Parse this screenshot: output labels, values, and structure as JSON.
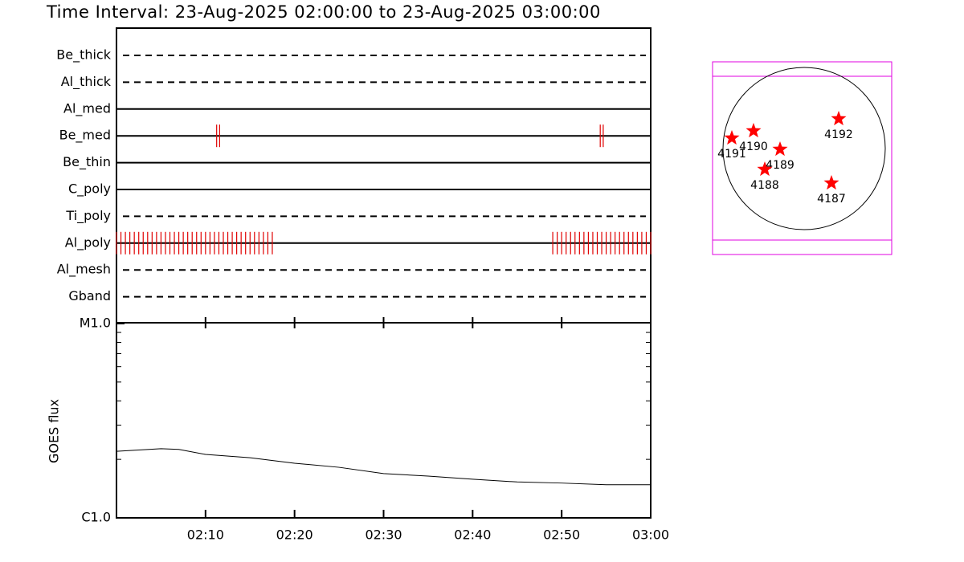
{
  "chart_data": [
    {
      "type": "timeline",
      "title": "Time Interval: 23-Aug-2025 02:00:00 to 23-Aug-2025 03:00:00",
      "categories": [
        "Be_thick",
        "Al_thick",
        "Al_med",
        "Be_med",
        "Be_thin",
        "C_poly",
        "Ti_poly",
        "Al_poly",
        "Al_mesh",
        "Gband"
      ],
      "styles": [
        "dashed",
        "dashed",
        "solid",
        "solid",
        "solid",
        "solid",
        "dashed",
        "solid",
        "dashed",
        "dashed"
      ],
      "event_color": "#e00000",
      "series": [
        {
          "name": "Be_med",
          "x": [
            "02:11:15",
            "02:11:35",
            "02:54:20",
            "02:54:40"
          ]
        },
        {
          "name": "Al_poly",
          "x": [
            "02:00:00",
            "02:00:30",
            "02:01:00",
            "02:01:30",
            "02:02:00",
            "02:02:30",
            "02:03:00",
            "02:03:30",
            "02:04:00",
            "02:04:30",
            "02:05:00",
            "02:05:30",
            "02:06:00",
            "02:06:30",
            "02:07:00",
            "02:07:30",
            "02:08:00",
            "02:08:30",
            "02:09:00",
            "02:09:30",
            "02:10:00",
            "02:10:30",
            "02:11:00",
            "02:11:30",
            "02:12:00",
            "02:12:30",
            "02:13:00",
            "02:13:30",
            "02:14:00",
            "02:14:30",
            "02:15:00",
            "02:15:30",
            "02:16:00",
            "02:16:30",
            "02:17:00",
            "02:17:30",
            "02:49:00",
            "02:49:30",
            "02:50:00",
            "02:50:30",
            "02:51:00",
            "02:51:30",
            "02:52:00",
            "02:52:30",
            "02:53:00",
            "02:53:30",
            "02:54:00",
            "02:54:30",
            "02:55:00",
            "02:55:30",
            "02:56:00",
            "02:56:30",
            "02:57:00",
            "02:57:30",
            "02:58:00",
            "02:58:30",
            "02:59:00",
            "02:59:30",
            "03:00:00"
          ]
        }
      ]
    },
    {
      "type": "line",
      "ylabel": "GOES flux",
      "log_scale": true,
      "xlim": [
        "02:00",
        "03:00"
      ],
      "xticks": [
        "02:10",
        "02:20",
        "02:30",
        "02:40",
        "02:50",
        "03:00"
      ],
      "ylim": [
        1e-06,
        1e-05
      ],
      "yticks": [
        {
          "value": 1e-06,
          "label": "C1.0"
        },
        {
          "value": 1e-05,
          "label": "M1.0"
        }
      ],
      "yminorticks": [
        2e-06,
        3e-06,
        4e-06,
        5e-06,
        6e-06,
        7e-06,
        8e-06,
        9e-06
      ],
      "color": "#000000",
      "x": [
        "02:00",
        "02:05",
        "02:07",
        "02:10",
        "02:15",
        "02:20",
        "02:25",
        "02:30",
        "02:35",
        "02:40",
        "02:45",
        "02:50",
        "02:55",
        "03:00"
      ],
      "values": [
        2.2e-06,
        2.27e-06,
        2.25e-06,
        2.12e-06,
        2.04e-06,
        1.91e-06,
        1.82e-06,
        1.69e-06,
        1.64e-06,
        1.58e-06,
        1.53e-06,
        1.51e-06,
        1.48e-06,
        1.48e-06
      ]
    },
    {
      "type": "map",
      "marker_color": "#ff0000",
      "regions": [
        "4192",
        "4190",
        "4191",
        "4189",
        "4188",
        "4187"
      ]
    }
  ]
}
